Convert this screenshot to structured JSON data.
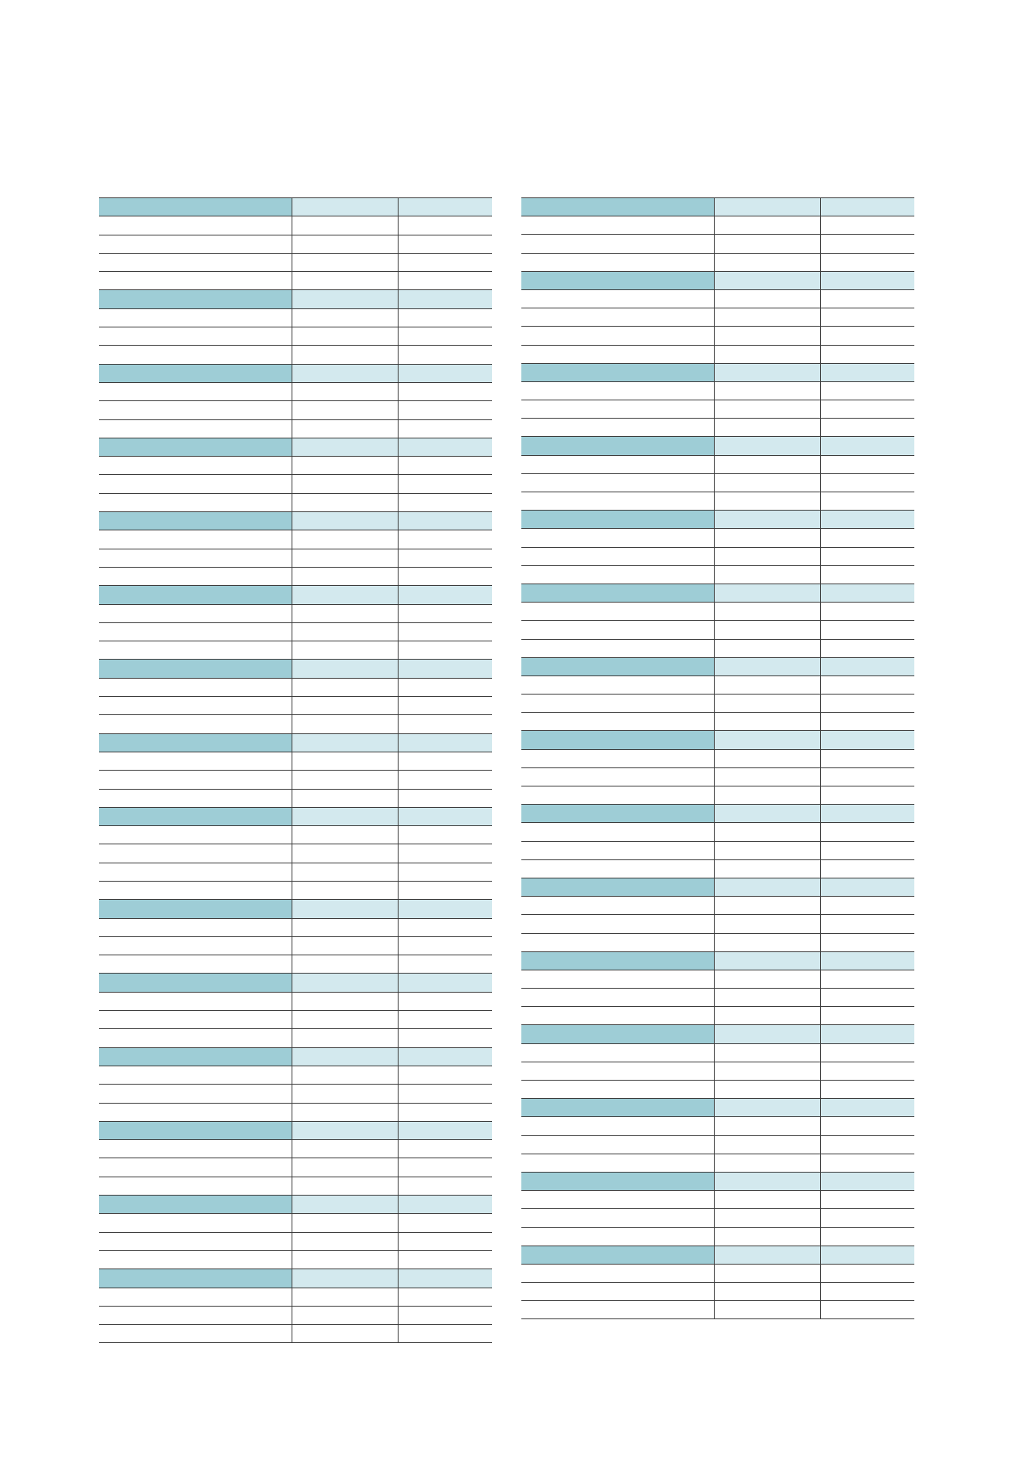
{
  "left_table": {
    "blocks": [
      {
        "header": [
          "",
          "",
          ""
        ],
        "rows": [
          [
            "",
            "",
            ""
          ],
          [
            "",
            "",
            ""
          ],
          [
            "",
            "",
            ""
          ],
          [
            "",
            "",
            ""
          ]
        ]
      },
      {
        "header": [
          "",
          "",
          ""
        ],
        "rows": [
          [
            "",
            "",
            ""
          ],
          [
            "",
            "",
            ""
          ],
          [
            "",
            "",
            ""
          ]
        ]
      },
      {
        "header": [
          "",
          "",
          ""
        ],
        "rows": [
          [
            "",
            "",
            ""
          ],
          [
            "",
            "",
            ""
          ],
          [
            "",
            "",
            ""
          ]
        ]
      },
      {
        "header": [
          "",
          "",
          ""
        ],
        "rows": [
          [
            "",
            "",
            ""
          ],
          [
            "",
            "",
            ""
          ],
          [
            "",
            "",
            ""
          ]
        ]
      },
      {
        "header": [
          "",
          "",
          ""
        ],
        "rows": [
          [
            "",
            "",
            ""
          ],
          [
            "",
            "",
            ""
          ],
          [
            "",
            "",
            ""
          ]
        ]
      },
      {
        "header": [
          "",
          "",
          ""
        ],
        "rows": [
          [
            "",
            "",
            ""
          ],
          [
            "",
            "",
            ""
          ],
          [
            "",
            "",
            ""
          ]
        ]
      },
      {
        "header": [
          "",
          "",
          ""
        ],
        "rows": [
          [
            "",
            "",
            ""
          ],
          [
            "",
            "",
            ""
          ],
          [
            "",
            "",
            ""
          ]
        ]
      },
      {
        "header": [
          "",
          "",
          ""
        ],
        "rows": [
          [
            "",
            "",
            ""
          ],
          [
            "",
            "",
            ""
          ],
          [
            "",
            "",
            ""
          ]
        ]
      },
      {
        "header": [
          "",
          "",
          ""
        ],
        "rows": [
          [
            "",
            "",
            ""
          ],
          [
            "",
            "",
            ""
          ],
          [
            "",
            "",
            ""
          ],
          [
            "",
            "",
            ""
          ]
        ]
      },
      {
        "header": [
          "",
          "",
          ""
        ],
        "rows": [
          [
            "",
            "",
            ""
          ],
          [
            "",
            "",
            ""
          ],
          [
            "",
            "",
            ""
          ]
        ]
      },
      {
        "header": [
          "",
          "",
          ""
        ],
        "rows": [
          [
            "",
            "",
            ""
          ],
          [
            "",
            "",
            ""
          ],
          [
            "",
            "",
            ""
          ]
        ]
      },
      {
        "header": [
          "",
          "",
          ""
        ],
        "rows": [
          [
            "",
            "",
            ""
          ],
          [
            "",
            "",
            ""
          ],
          [
            "",
            "",
            ""
          ]
        ]
      },
      {
        "header": [
          "",
          "",
          ""
        ],
        "rows": [
          [
            "",
            "",
            ""
          ],
          [
            "",
            "",
            ""
          ],
          [
            "",
            "",
            ""
          ]
        ]
      },
      {
        "header": [
          "",
          "",
          ""
        ],
        "rows": [
          [
            "",
            "",
            ""
          ],
          [
            "",
            "",
            ""
          ],
          [
            "",
            "",
            ""
          ]
        ]
      },
      {
        "header": [
          "",
          "",
          ""
        ],
        "rows": [
          [
            "",
            "",
            ""
          ],
          [
            "",
            "",
            ""
          ],
          [
            "",
            "",
            ""
          ]
        ]
      }
    ]
  },
  "right_table": {
    "blocks": [
      {
        "header": [
          "",
          "",
          ""
        ],
        "rows": [
          [
            "",
            "",
            ""
          ],
          [
            "",
            "",
            ""
          ],
          [
            "",
            "",
            ""
          ]
        ]
      },
      {
        "header": [
          "",
          "",
          ""
        ],
        "rows": [
          [
            "",
            "",
            ""
          ],
          [
            "",
            "",
            ""
          ],
          [
            "",
            "",
            ""
          ],
          [
            "",
            "",
            ""
          ]
        ]
      },
      {
        "header": [
          "",
          "",
          ""
        ],
        "rows": [
          [
            "",
            "",
            ""
          ],
          [
            "",
            "",
            ""
          ],
          [
            "",
            "",
            ""
          ]
        ]
      },
      {
        "header": [
          "",
          "",
          ""
        ],
        "rows": [
          [
            "",
            "",
            ""
          ],
          [
            "",
            "",
            ""
          ],
          [
            "",
            "",
            ""
          ]
        ]
      },
      {
        "header": [
          "",
          "",
          ""
        ],
        "rows": [
          [
            "",
            "",
            ""
          ],
          [
            "",
            "",
            ""
          ],
          [
            "",
            "",
            ""
          ]
        ]
      },
      {
        "header": [
          "",
          "",
          ""
        ],
        "rows": [
          [
            "",
            "",
            ""
          ],
          [
            "",
            "",
            ""
          ],
          [
            "",
            "",
            ""
          ]
        ]
      },
      {
        "header": [
          "",
          "",
          ""
        ],
        "rows": [
          [
            "",
            "",
            ""
          ],
          [
            "",
            "",
            ""
          ],
          [
            "",
            "",
            ""
          ]
        ]
      },
      {
        "header": [
          "",
          "",
          ""
        ],
        "rows": [
          [
            "",
            "",
            ""
          ],
          [
            "",
            "",
            ""
          ],
          [
            "",
            "",
            ""
          ]
        ]
      },
      {
        "header": [
          "",
          "",
          ""
        ],
        "rows": [
          [
            "",
            "",
            ""
          ],
          [
            "",
            "",
            ""
          ],
          [
            "",
            "",
            ""
          ]
        ]
      },
      {
        "header": [
          "",
          "",
          ""
        ],
        "rows": [
          [
            "",
            "",
            ""
          ],
          [
            "",
            "",
            ""
          ],
          [
            "",
            "",
            ""
          ]
        ]
      },
      {
        "header": [
          "",
          "",
          ""
        ],
        "rows": [
          [
            "",
            "",
            ""
          ],
          [
            "",
            "",
            ""
          ],
          [
            "",
            "",
            ""
          ]
        ]
      },
      {
        "header": [
          "",
          "",
          ""
        ],
        "rows": [
          [
            "",
            "",
            ""
          ],
          [
            "",
            "",
            ""
          ],
          [
            "",
            "",
            ""
          ]
        ]
      },
      {
        "header": [
          "",
          "",
          ""
        ],
        "rows": [
          [
            "",
            "",
            ""
          ],
          [
            "",
            "",
            ""
          ],
          [
            "",
            "",
            ""
          ]
        ]
      },
      {
        "header": [
          "",
          "",
          ""
        ],
        "rows": [
          [
            "",
            "",
            ""
          ],
          [
            "",
            "",
            ""
          ],
          [
            "",
            "",
            ""
          ]
        ]
      },
      {
        "header": [
          "",
          "",
          ""
        ],
        "rows": [
          [
            "",
            "",
            ""
          ],
          [
            "",
            "",
            ""
          ],
          [
            "",
            "",
            ""
          ]
        ]
      }
    ]
  },
  "colors": {
    "header_primary": "#9ecdd6",
    "header_secondary": "#d3e9ee",
    "rule": "#3c3c3c"
  }
}
